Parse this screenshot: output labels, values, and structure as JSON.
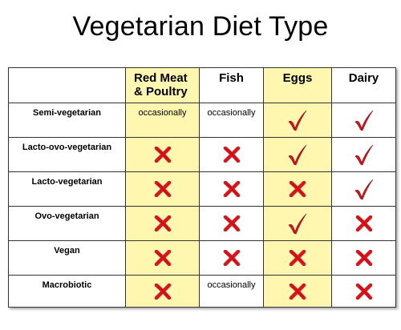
{
  "title": "Vegetarian Diet Type",
  "columns": [
    "Red Meat\n& Poultry",
    "Fish",
    "Eggs",
    "Dairy"
  ],
  "rows": [
    {
      "label": "Semi-vegetarian",
      "values": [
        "occasionally",
        "occasionally",
        "check",
        "check"
      ]
    },
    {
      "label": "Lacto-ovo-vegetarian",
      "values": [
        "cross",
        "cross",
        "check",
        "check"
      ]
    },
    {
      "label": "Lacto-vegetarian",
      "values": [
        "cross",
        "cross",
        "cross",
        "check"
      ]
    },
    {
      "label": "Ovo-vegetarian",
      "values": [
        "cross",
        "cross",
        "check",
        "cross"
      ]
    },
    {
      "label": "Vegan",
      "values": [
        "cross",
        "cross",
        "cross",
        "cross"
      ]
    },
    {
      "label": "Macrobiotic",
      "values": [
        "cross",
        "occasionally",
        "cross",
        "cross"
      ]
    }
  ],
  "highlight_columns": [
    0,
    2
  ],
  "colors": {
    "highlight": "#fff7b0",
    "mark": "#d9141b"
  }
}
